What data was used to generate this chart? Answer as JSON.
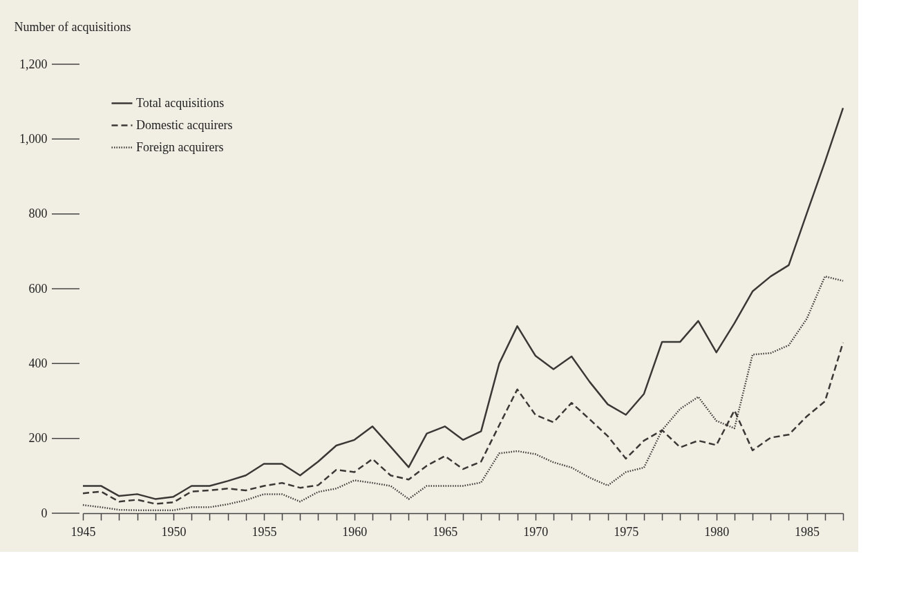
{
  "chart_data": {
    "type": "line",
    "ylabel": "Number of acquisitions",
    "x": [
      1945,
      1946,
      1947,
      1948,
      1949,
      1950,
      1951,
      1952,
      1953,
      1954,
      1955,
      1956,
      1957,
      1958,
      1959,
      1960,
      1961,
      1962,
      1963,
      1964,
      1965,
      1966,
      1967,
      1968,
      1969,
      1970,
      1971,
      1972,
      1973,
      1974,
      1975,
      1976,
      1977,
      1978,
      1979,
      1980,
      1981,
      1982,
      1983,
      1984,
      1985,
      1986,
      1987
    ],
    "series": [
      {
        "name": "Total acquisitions",
        "color": "#3a3835",
        "line_style": "solid",
        "values": [
          73,
          73,
          46,
          51,
          38,
          44,
          73,
          73,
          86,
          101,
          132,
          132,
          101,
          138,
          181,
          196,
          232,
          178,
          123,
          213,
          232,
          196,
          219,
          400,
          500,
          421,
          385,
          419,
          351,
          291,
          263,
          319,
          458,
          458,
          514,
          430,
          508,
          593,
          633,
          663,
          802,
          939,
          1083
        ]
      },
      {
        "name": "Domestic acquirers",
        "color": "#3a3835",
        "line_style": "dashed",
        "values": [
          53,
          58,
          31,
          36,
          25,
          29,
          58,
          61,
          66,
          61,
          73,
          81,
          68,
          75,
          116,
          110,
          145,
          101,
          90,
          127,
          153,
          118,
          138,
          235,
          331,
          263,
          243,
          295,
          251,
          206,
          146,
          194,
          222,
          176,
          194,
          182,
          275,
          168,
          202,
          210,
          259,
          299,
          456
        ]
      },
      {
        "name": "Foreign acquirers",
        "color": "#3a3835",
        "line_style": "dotted",
        "values": [
          22,
          16,
          9,
          8,
          8,
          8,
          16,
          16,
          24,
          35,
          51,
          51,
          31,
          57,
          66,
          88,
          81,
          73,
          38,
          73,
          73,
          73,
          82,
          160,
          166,
          158,
          136,
          122,
          95,
          74,
          110,
          122,
          222,
          279,
          311,
          247,
          227,
          424,
          428,
          449,
          520,
          633,
          621
        ]
      }
    ],
    "xlim": [
      1945,
      1987
    ],
    "xticks": [
      1945,
      {
        "value": 1946,
        "label": null
      },
      {
        "value": 1947,
        "label": null
      },
      {
        "value": 1948,
        "label": null
      },
      {
        "value": 1949,
        "label": null
      },
      1950,
      {
        "value": 1951,
        "label": null
      },
      {
        "value": 1952,
        "label": null
      },
      {
        "value": 1953,
        "label": null
      },
      {
        "value": 1954,
        "label": null
      },
      1955,
      {
        "value": 1956,
        "label": null
      },
      {
        "value": 1957,
        "label": null
      },
      {
        "value": 1958,
        "label": null
      },
      {
        "value": 1959,
        "label": null
      },
      1960,
      {
        "value": 1961,
        "label": null
      },
      {
        "value": 1962,
        "label": null
      },
      {
        "value": 1963,
        "label": null
      },
      {
        "value": 1964,
        "label": null
      },
      1965,
      {
        "value": 1966,
        "label": null
      },
      {
        "value": 1967,
        "label": null
      },
      {
        "value": 1968,
        "label": null
      },
      {
        "value": 1969,
        "label": null
      },
      1970,
      {
        "value": 1971,
        "label": null
      },
      {
        "value": 1972,
        "label": null
      },
      {
        "value": 1973,
        "label": null
      },
      {
        "value": 1974,
        "label": null
      },
      1975,
      {
        "value": 1976,
        "label": null
      },
      {
        "value": 1977,
        "label": null
      },
      {
        "value": 1978,
        "label": null
      },
      {
        "value": 1979,
        "label": null
      },
      1980,
      {
        "value": 1981,
        "label": null
      },
      {
        "value": 1982,
        "label": null
      },
      {
        "value": 1983,
        "label": null
      },
      {
        "value": 1984,
        "label": null
      },
      1985,
      {
        "value": 1986,
        "label": null
      },
      {
        "value": 1987,
        "label": null
      }
    ],
    "ylim": [
      0,
      1200
    ],
    "yticks": [
      0,
      {
        "value": 200,
        "label": "200"
      },
      {
        "value": 400,
        "label": "400"
      },
      {
        "value": 600,
        "label": "600"
      },
      {
        "value": 800,
        "label": "800"
      },
      {
        "value": 1000,
        "label": "1,000"
      },
      {
        "value": 1200,
        "label": "1,200"
      }
    ],
    "grid": false,
    "legend": "top left",
    "marker": "none"
  }
}
